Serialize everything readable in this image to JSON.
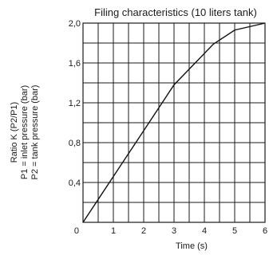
{
  "chart_data": {
    "type": "line",
    "title": "Filing characteristics (10 liters tank)",
    "xlabel": "Time (s)",
    "ylabel_lines": [
      "Ratio K (P2/P1)",
      "P1 = inlet pressure (bar)",
      "P2 = tank pressure (bar)"
    ],
    "xlim": [
      0,
      6
    ],
    "ylim": [
      0,
      2.0
    ],
    "x_ticks": [
      {
        "value": 0,
        "label": "0"
      },
      {
        "value": 1,
        "label": "1"
      },
      {
        "value": 2,
        "label": "2"
      },
      {
        "value": 3,
        "label": "3"
      },
      {
        "value": 4,
        "label": "4"
      },
      {
        "value": 5,
        "label": "5"
      },
      {
        "value": 6,
        "label": "6"
      }
    ],
    "y_ticks": [
      {
        "value": 0.4,
        "label": "0,4"
      },
      {
        "value": 0.8,
        "label": "0,8"
      },
      {
        "value": 1.2,
        "label": "1,2"
      },
      {
        "value": 1.6,
        "label": "1,6"
      },
      {
        "value": 2.0,
        "label": "2,0"
      }
    ],
    "x_grid_step": 0.5,
    "y_grid_step": 0.2,
    "grid": true,
    "series": [
      {
        "x": [
          0,
          1,
          2,
          3,
          4.3,
          5,
          6
        ],
        "y": [
          0,
          0.46,
          0.92,
          1.38,
          1.79,
          1.93,
          2.0
        ]
      }
    ]
  }
}
